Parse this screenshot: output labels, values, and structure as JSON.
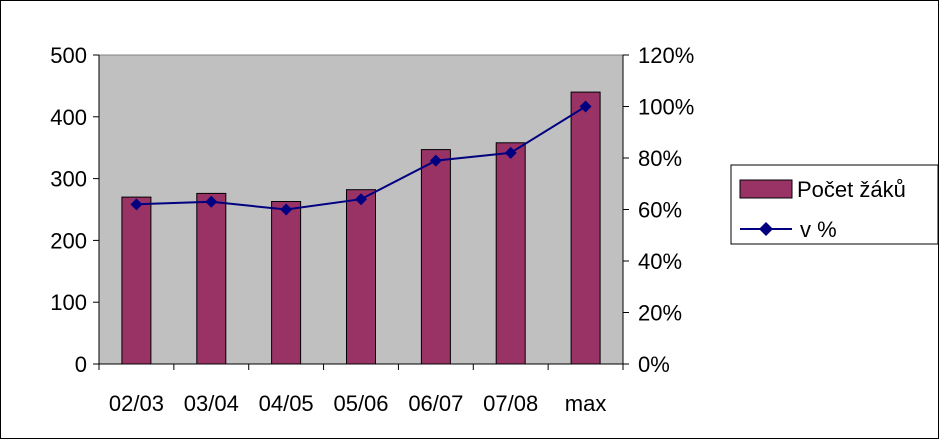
{
  "chart_data": {
    "type": "bar",
    "title": "",
    "xlabel": "",
    "ylabel": "",
    "categories": [
      "02/03",
      "03/04",
      "04/05",
      "05/06",
      "06/07",
      "07/08",
      "max"
    ],
    "series": [
      {
        "name": "Počet žáků",
        "type": "bar",
        "axis": "left",
        "values": [
          270,
          276,
          263,
          282,
          347,
          358,
          440
        ],
        "color": "#993366"
      },
      {
        "name": "v %",
        "type": "line",
        "axis": "right",
        "values": [
          62,
          63,
          60,
          64,
          79,
          82,
          100
        ],
        "color": "#000080",
        "marker": "diamond"
      }
    ],
    "y_left": {
      "range": [
        0,
        500
      ],
      "ticks": [
        0,
        100,
        200,
        300,
        400,
        500
      ],
      "tick_labels": [
        "0",
        "100",
        "200",
        "300",
        "400",
        "500"
      ]
    },
    "y_right": {
      "range": [
        0,
        120
      ],
      "ticks": [
        0,
        20,
        40,
        60,
        80,
        100,
        120
      ],
      "tick_labels": [
        "0%",
        "20%",
        "40%",
        "60%",
        "80%",
        "100%",
        "120%"
      ]
    },
    "plot_background": "#c0c0c0",
    "grid": false,
    "legend": {
      "placement": "right",
      "entries": [
        "Počet žáků",
        "v %"
      ]
    }
  }
}
